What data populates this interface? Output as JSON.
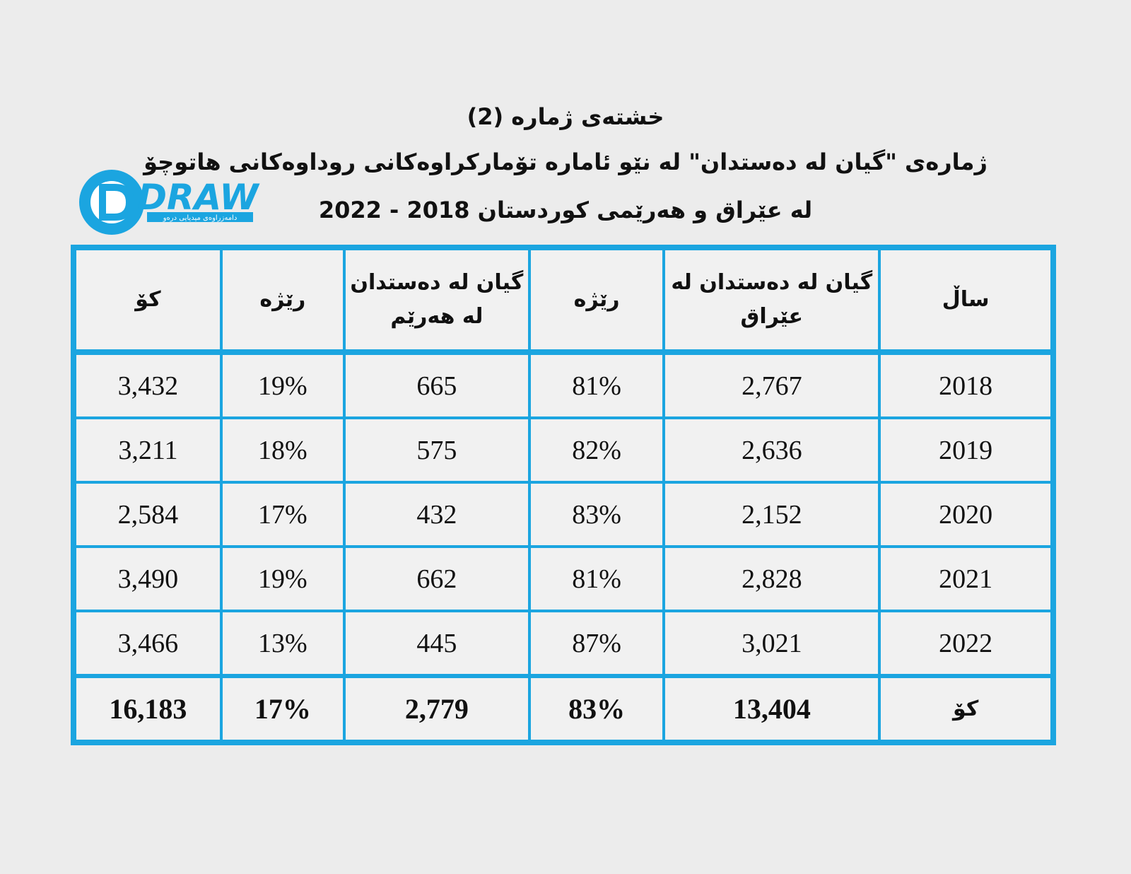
{
  "title": {
    "line1": "خشتەی ژمارە (2)",
    "line2": "ژمارەی \"گیان لە دەستدان\"  لە نێو ئامارە تۆمارکراوەکانی روداوەکانی هاتوچۆ",
    "line3": "لە عێراق و هەرێمی کوردستان 2018 - 2022"
  },
  "logo": {
    "text": "DRAW",
    "subtitle": "دامەزراوەی میدیایی درەو",
    "color": "#1ba5e0"
  },
  "table": {
    "headers": {
      "year": "ساڵ",
      "iraq_line1": "گیان لە دەستدان لە",
      "iraq_line2": "عێراق",
      "iraq_pct": "رێژە",
      "region_line1": "گیان لە دەستدان",
      "region_line2": "لە هەرێم",
      "region_pct": "رێژە",
      "total": "کۆ"
    },
    "rows": [
      {
        "year": "2018",
        "iraq": "2,767",
        "iraq_pct": "81%",
        "region": "665",
        "region_pct": "19%",
        "total": "3,432"
      },
      {
        "year": "2019",
        "iraq": "2,636",
        "iraq_pct": "82%",
        "region": "575",
        "region_pct": "18%",
        "total": "3,211"
      },
      {
        "year": "2020",
        "iraq": "2,152",
        "iraq_pct": "83%",
        "region": "432",
        "region_pct": "17%",
        "total": "2,584"
      },
      {
        "year": "2021",
        "iraq": "2,828",
        "iraq_pct": "81%",
        "region": "662",
        "region_pct": "19%",
        "total": "3,490"
      },
      {
        "year": "2022",
        "iraq": "3,021",
        "iraq_pct": "87%",
        "region": "445",
        "region_pct": "13%",
        "total": "3,466"
      }
    ],
    "totals": {
      "label": "کۆ",
      "iraq": "13,404",
      "iraq_pct": "83%",
      "region": "2,779",
      "region_pct": "17%",
      "total": "16,183"
    },
    "border_color": "#1ba5e0"
  }
}
